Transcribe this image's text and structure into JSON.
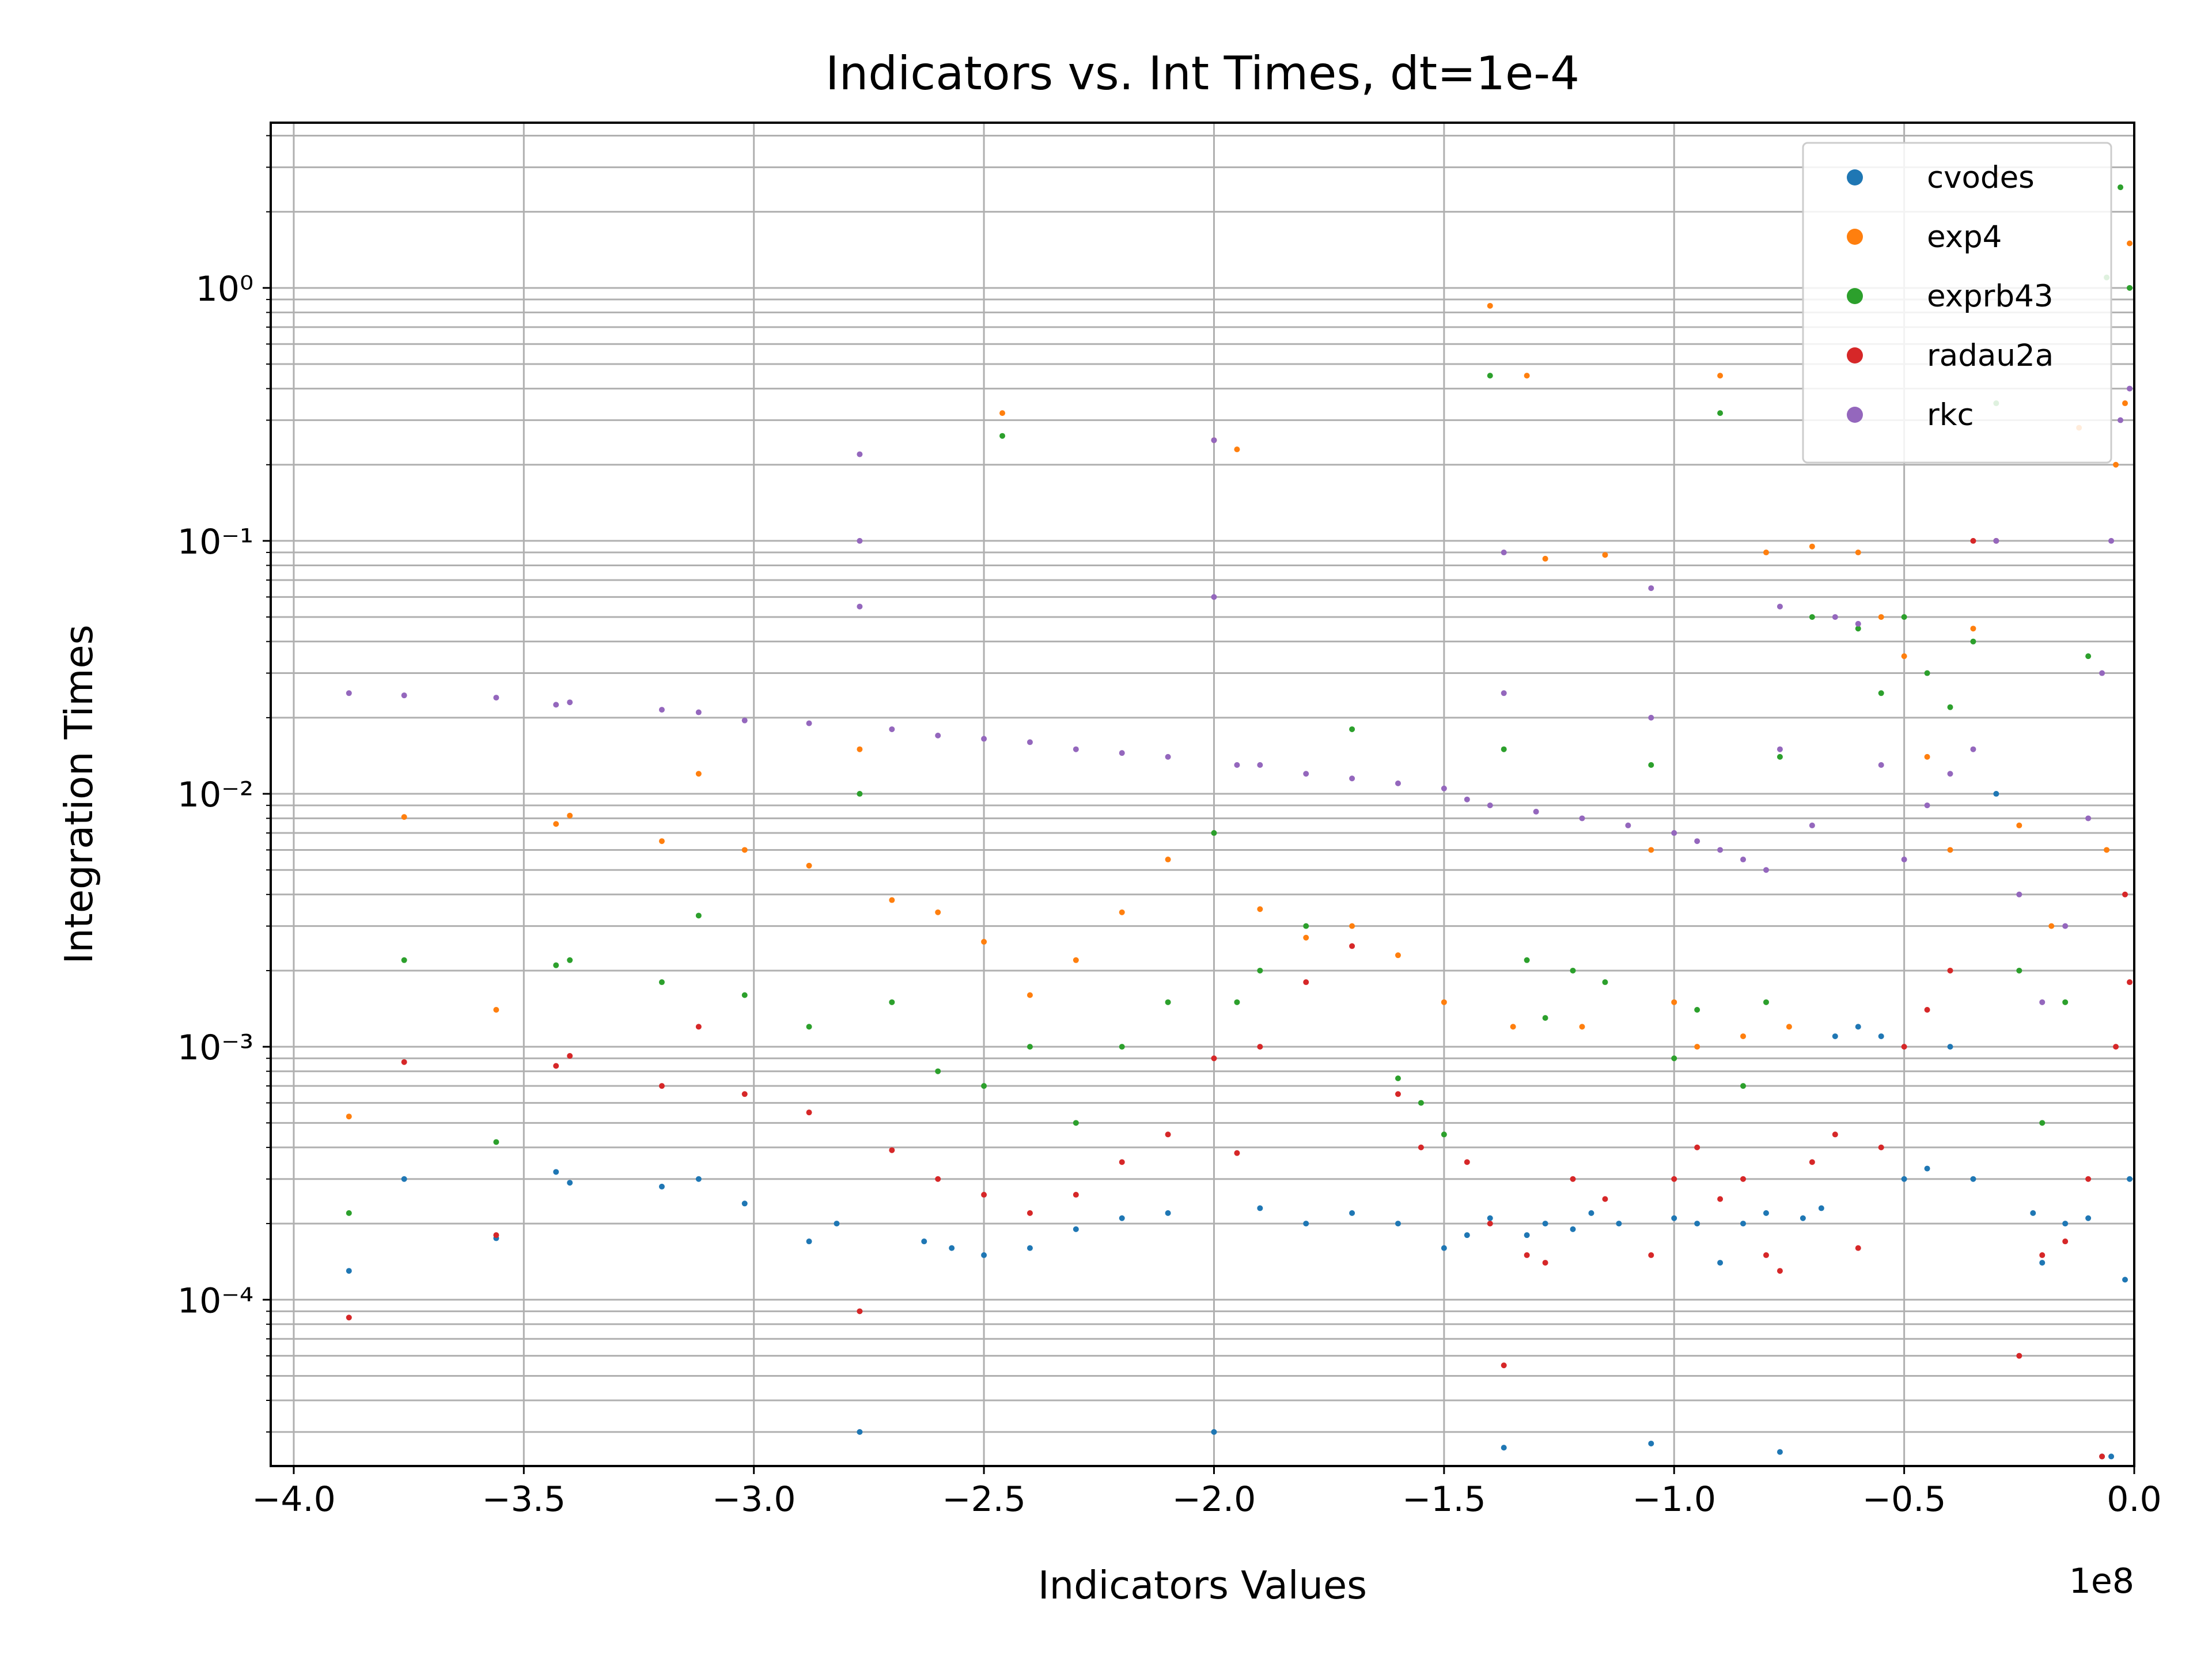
{
  "chart_data": {
    "type": "scatter",
    "title": "Indicators vs. Int Times, dt=1e-4",
    "xlabel": "Indicators Values",
    "ylabel": "Integration Times",
    "x_offset_text": "1e8",
    "x_scale": "linear",
    "y_scale": "log",
    "xlim": [
      -4.05,
      0.0
    ],
    "ylim": [
      2.2e-05,
      4.5
    ],
    "x_ticks": [
      -4.0,
      -3.5,
      -3.0,
      -2.5,
      -2.0,
      -1.5,
      -1.0,
      -0.5,
      0.0
    ],
    "x_tick_labels": [
      "−4.0",
      "−3.5",
      "−3.0",
      "−2.5",
      "−2.0",
      "−1.5",
      "−1.0",
      "−0.5",
      "0.0"
    ],
    "y_ticks": [
      0.0001,
      0.001,
      0.01,
      0.1,
      1
    ],
    "y_tick_labels": [
      "10⁻⁴",
      "10⁻³",
      "10⁻²",
      "10⁻¹",
      "10⁰"
    ],
    "grid": true,
    "legend_position": "upper right",
    "series": [
      {
        "name": "cvodes",
        "color": "#1f77b4",
        "points": [
          [
            -3.88,
            0.00013
          ],
          [
            -3.76,
            0.0003
          ],
          [
            -3.56,
            0.000175
          ],
          [
            -3.43,
            0.00032
          ],
          [
            -3.4,
            0.00029
          ],
          [
            -3.2,
            0.00028
          ],
          [
            -3.12,
            0.0003
          ],
          [
            -3.02,
            0.00024
          ],
          [
            -2.88,
            0.00017
          ],
          [
            -2.82,
            0.0002
          ],
          [
            -2.77,
            3e-05
          ],
          [
            -2.63,
            0.00017
          ],
          [
            -2.57,
            0.00016
          ],
          [
            -2.5,
            0.00015
          ],
          [
            -2.4,
            0.00016
          ],
          [
            -2.3,
            0.00019
          ],
          [
            -2.2,
            0.00021
          ],
          [
            -2.1,
            0.00022
          ],
          [
            -2.0,
            3e-05
          ],
          [
            -1.9,
            0.00023
          ],
          [
            -1.8,
            0.0002
          ],
          [
            -1.7,
            0.00022
          ],
          [
            -1.6,
            0.0002
          ],
          [
            -1.5,
            0.00016
          ],
          [
            -1.45,
            0.00018
          ],
          [
            -1.4,
            0.00021
          ],
          [
            -1.37,
            2.6e-05
          ],
          [
            -1.32,
            0.00018
          ],
          [
            -1.28,
            0.0002
          ],
          [
            -1.22,
            0.00019
          ],
          [
            -1.18,
            0.00022
          ],
          [
            -1.12,
            0.0002
          ],
          [
            -1.05,
            2.7e-05
          ],
          [
            -1.0,
            0.00021
          ],
          [
            -0.95,
            0.0002
          ],
          [
            -0.9,
            0.00014
          ],
          [
            -0.85,
            0.0002
          ],
          [
            -0.8,
            0.00022
          ],
          [
            -0.77,
            2.5e-05
          ],
          [
            -0.72,
            0.00021
          ],
          [
            -0.68,
            0.00023
          ],
          [
            -0.65,
            0.0011
          ],
          [
            -0.6,
            0.0012
          ],
          [
            -0.55,
            0.0011
          ],
          [
            -0.5,
            0.0003
          ],
          [
            -0.45,
            0.00033
          ],
          [
            -0.4,
            0.001
          ],
          [
            -0.35,
            0.0003
          ],
          [
            -0.3,
            0.01
          ],
          [
            -0.22,
            0.00022
          ],
          [
            -0.2,
            0.00014
          ],
          [
            -0.15,
            0.0002
          ],
          [
            -0.1,
            0.00021
          ],
          [
            -0.07,
            2.4e-05
          ],
          [
            -0.05,
            2.4e-05
          ],
          [
            -0.02,
            0.00012
          ],
          [
            -0.01,
            0.0003
          ]
        ]
      },
      {
        "name": "exp4",
        "color": "#ff7f0e",
        "points": [
          [
            -3.88,
            0.00053
          ],
          [
            -3.76,
            0.0081
          ],
          [
            -3.56,
            0.0014
          ],
          [
            -3.43,
            0.0076
          ],
          [
            -3.4,
            0.0082
          ],
          [
            -3.2,
            0.0065
          ],
          [
            -3.12,
            0.012
          ],
          [
            -3.02,
            0.006
          ],
          [
            -2.88,
            0.0052
          ],
          [
            -2.77,
            0.015
          ],
          [
            -2.7,
            0.0038
          ],
          [
            -2.6,
            0.0034
          ],
          [
            -2.5,
            0.0026
          ],
          [
            -2.46,
            0.32
          ],
          [
            -2.4,
            0.0016
          ],
          [
            -2.3,
            0.0022
          ],
          [
            -2.2,
            0.0034
          ],
          [
            -2.1,
            0.0055
          ],
          [
            -2.0,
            0.25
          ],
          [
            -1.95,
            0.23
          ],
          [
            -1.9,
            0.0035
          ],
          [
            -1.8,
            0.0027
          ],
          [
            -1.7,
            0.003
          ],
          [
            -1.6,
            0.0023
          ],
          [
            -1.5,
            0.0015
          ],
          [
            -1.4,
            0.85
          ],
          [
            -1.35,
            0.0012
          ],
          [
            -1.32,
            0.45
          ],
          [
            -1.28,
            0.085
          ],
          [
            -1.2,
            0.0012
          ],
          [
            -1.15,
            0.088
          ],
          [
            -1.05,
            0.006
          ],
          [
            -1.0,
            0.0015
          ],
          [
            -0.95,
            0.001
          ],
          [
            -0.9,
            0.45
          ],
          [
            -0.85,
            0.0011
          ],
          [
            -0.8,
            0.09
          ],
          [
            -0.75,
            0.0012
          ],
          [
            -0.7,
            0.095
          ],
          [
            -0.6,
            0.09
          ],
          [
            -0.55,
            0.05
          ],
          [
            -0.5,
            0.035
          ],
          [
            -0.45,
            0.014
          ],
          [
            -0.4,
            0.006
          ],
          [
            -0.35,
            0.045
          ],
          [
            -0.3,
            2.8
          ],
          [
            -0.25,
            0.0075
          ],
          [
            -0.18,
            0.003
          ],
          [
            -0.12,
            0.28
          ],
          [
            -0.06,
            0.006
          ],
          [
            -0.04,
            0.2
          ],
          [
            -0.02,
            0.35
          ],
          [
            -0.01,
            1.5
          ]
        ]
      },
      {
        "name": "exprb43",
        "color": "#2ca02c",
        "points": [
          [
            -3.88,
            0.00022
          ],
          [
            -3.76,
            0.0022
          ],
          [
            -3.56,
            0.00042
          ],
          [
            -3.43,
            0.0021
          ],
          [
            -3.4,
            0.0022
          ],
          [
            -3.2,
            0.0018
          ],
          [
            -3.12,
            0.0033
          ],
          [
            -3.02,
            0.0016
          ],
          [
            -2.88,
            0.0012
          ],
          [
            -2.77,
            0.01
          ],
          [
            -2.7,
            0.0015
          ],
          [
            -2.6,
            0.0008
          ],
          [
            -2.5,
            0.0007
          ],
          [
            -2.46,
            0.26
          ],
          [
            -2.4,
            0.001
          ],
          [
            -2.3,
            0.0005
          ],
          [
            -2.2,
            0.001
          ],
          [
            -2.1,
            0.0015
          ],
          [
            -2.0,
            0.007
          ],
          [
            -1.95,
            0.0015
          ],
          [
            -1.9,
            0.002
          ],
          [
            -1.8,
            0.003
          ],
          [
            -1.7,
            0.018
          ],
          [
            -1.6,
            0.00075
          ],
          [
            -1.55,
            0.0006
          ],
          [
            -1.5,
            0.00045
          ],
          [
            -1.4,
            0.45
          ],
          [
            -1.37,
            0.015
          ],
          [
            -1.32,
            0.0022
          ],
          [
            -1.28,
            0.0013
          ],
          [
            -1.22,
            0.002
          ],
          [
            -1.15,
            0.0018
          ],
          [
            -1.05,
            0.013
          ],
          [
            -1.0,
            0.0009
          ],
          [
            -0.95,
            0.0014
          ],
          [
            -0.9,
            0.32
          ],
          [
            -0.85,
            0.0007
          ],
          [
            -0.8,
            0.0015
          ],
          [
            -0.77,
            0.014
          ],
          [
            -0.7,
            0.05
          ],
          [
            -0.6,
            0.045
          ],
          [
            -0.55,
            0.025
          ],
          [
            -0.5,
            0.05
          ],
          [
            -0.45,
            0.03
          ],
          [
            -0.4,
            0.022
          ],
          [
            -0.35,
            0.04
          ],
          [
            -0.3,
            0.35
          ],
          [
            -0.25,
            0.002
          ],
          [
            -0.2,
            0.0005
          ],
          [
            -0.15,
            0.0015
          ],
          [
            -0.1,
            0.035
          ],
          [
            -0.06,
            1.1
          ],
          [
            -0.03,
            2.5
          ],
          [
            -0.01,
            1.0
          ]
        ]
      },
      {
        "name": "radau2a",
        "color": "#d62728",
        "points": [
          [
            -3.88,
            8.5e-05
          ],
          [
            -3.76,
            0.00087
          ],
          [
            -3.56,
            0.00018
          ],
          [
            -3.43,
            0.00084
          ],
          [
            -3.4,
            0.00092
          ],
          [
            -3.2,
            0.0007
          ],
          [
            -3.12,
            0.0012
          ],
          [
            -3.02,
            0.00065
          ],
          [
            -2.88,
            0.00055
          ],
          [
            -2.77,
            9e-05
          ],
          [
            -2.7,
            0.00039
          ],
          [
            -2.6,
            0.0003
          ],
          [
            -2.5,
            0.00026
          ],
          [
            -2.4,
            0.00022
          ],
          [
            -2.3,
            0.00026
          ],
          [
            -2.2,
            0.00035
          ],
          [
            -2.1,
            0.00045
          ],
          [
            -2.0,
            0.0009
          ],
          [
            -1.95,
            0.00038
          ],
          [
            -1.9,
            0.001
          ],
          [
            -1.8,
            0.0018
          ],
          [
            -1.7,
            0.0025
          ],
          [
            -1.6,
            0.00065
          ],
          [
            -1.55,
            0.0004
          ],
          [
            -1.45,
            0.00035
          ],
          [
            -1.4,
            0.0002
          ],
          [
            -1.37,
            5.5e-05
          ],
          [
            -1.32,
            0.00015
          ],
          [
            -1.28,
            0.00014
          ],
          [
            -1.22,
            0.0003
          ],
          [
            -1.15,
            0.00025
          ],
          [
            -1.05,
            0.00015
          ],
          [
            -1.0,
            0.0003
          ],
          [
            -0.95,
            0.0004
          ],
          [
            -0.9,
            0.00025
          ],
          [
            -0.85,
            0.0003
          ],
          [
            -0.8,
            0.00015
          ],
          [
            -0.77,
            0.00013
          ],
          [
            -0.7,
            0.00035
          ],
          [
            -0.65,
            0.00045
          ],
          [
            -0.6,
            0.00016
          ],
          [
            -0.55,
            0.0004
          ],
          [
            -0.5,
            0.001
          ],
          [
            -0.45,
            0.0014
          ],
          [
            -0.4,
            0.002
          ],
          [
            -0.35,
            0.1
          ],
          [
            -0.3,
            0.1
          ],
          [
            -0.25,
            6e-05
          ],
          [
            -0.2,
            0.00015
          ],
          [
            -0.15,
            0.00017
          ],
          [
            -0.1,
            0.0003
          ],
          [
            -0.07,
            2.4e-05
          ],
          [
            -0.04,
            0.001
          ],
          [
            -0.02,
            0.004
          ],
          [
            -0.01,
            0.0018
          ]
        ]
      },
      {
        "name": "rkc",
        "color": "#9467bd",
        "points": [
          [
            -3.88,
            0.025
          ],
          [
            -3.76,
            0.0245
          ],
          [
            -3.56,
            0.024
          ],
          [
            -3.43,
            0.0225
          ],
          [
            -3.4,
            0.023
          ],
          [
            -3.2,
            0.0215
          ],
          [
            -3.12,
            0.021
          ],
          [
            -3.02,
            0.0195
          ],
          [
            -2.88,
            0.019
          ],
          [
            -2.77,
            0.22
          ],
          [
            -2.77,
            0.1
          ],
          [
            -2.77,
            0.055
          ],
          [
            -2.7,
            0.018
          ],
          [
            -2.6,
            0.017
          ],
          [
            -2.5,
            0.0165
          ],
          [
            -2.4,
            0.016
          ],
          [
            -2.3,
            0.015
          ],
          [
            -2.2,
            0.0145
          ],
          [
            -2.1,
            0.014
          ],
          [
            -2.0,
            0.25
          ],
          [
            -2.0,
            0.06
          ],
          [
            -1.95,
            0.013
          ],
          [
            -1.9,
            0.013
          ],
          [
            -1.8,
            0.012
          ],
          [
            -1.7,
            0.0115
          ],
          [
            -1.6,
            0.011
          ],
          [
            -1.5,
            0.0105
          ],
          [
            -1.45,
            0.0095
          ],
          [
            -1.4,
            0.009
          ],
          [
            -1.37,
            0.09
          ],
          [
            -1.37,
            0.025
          ],
          [
            -1.3,
            0.0085
          ],
          [
            -1.2,
            0.008
          ],
          [
            -1.1,
            0.0075
          ],
          [
            -1.05,
            0.065
          ],
          [
            -1.05,
            0.02
          ],
          [
            -1.0,
            0.007
          ],
          [
            -0.95,
            0.0065
          ],
          [
            -0.9,
            0.006
          ],
          [
            -0.85,
            0.0055
          ],
          [
            -0.8,
            0.005
          ],
          [
            -0.77,
            0.055
          ],
          [
            -0.77,
            0.015
          ],
          [
            -0.7,
            0.0075
          ],
          [
            -0.65,
            0.05
          ],
          [
            -0.6,
            0.047
          ],
          [
            -0.55,
            0.013
          ],
          [
            -0.5,
            0.0055
          ],
          [
            -0.45,
            0.009
          ],
          [
            -0.4,
            0.012
          ],
          [
            -0.35,
            0.015
          ],
          [
            -0.3,
            0.1
          ],
          [
            -0.25,
            0.004
          ],
          [
            -0.2,
            0.0015
          ],
          [
            -0.15,
            0.003
          ],
          [
            -0.1,
            0.008
          ],
          [
            -0.07,
            0.03
          ],
          [
            -0.05,
            0.1
          ],
          [
            -0.03,
            0.3
          ],
          [
            -0.01,
            0.4
          ]
        ]
      }
    ]
  }
}
